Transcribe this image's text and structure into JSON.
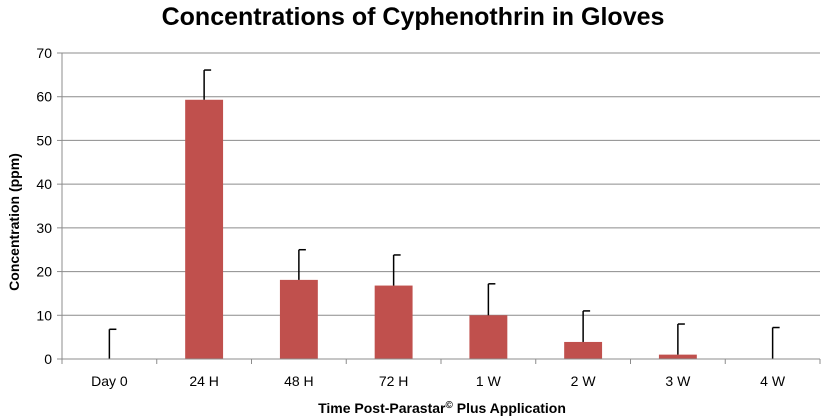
{
  "chart_data": {
    "type": "bar",
    "title": "Concentrations of Cyphenothrin in Gloves",
    "xlabel": "Time Post-Parastar",
    "xlabel_superscript": "©",
    "xlabel_suffix": " Plus Application",
    "ylabel": "Concentration (ppm)",
    "ylim": [
      0,
      70
    ],
    "yticks": [
      "0",
      "10",
      "20",
      "30",
      "40",
      "50",
      "60",
      "70"
    ],
    "grid": true,
    "bar_color": "#c0504d",
    "categories": [
      "Day 0",
      "24 H",
      "48 H",
      "72 H",
      "1 W",
      "2 W",
      "3 W",
      "4 W"
    ],
    "values": [
      0,
      59.3,
      18.1,
      16.8,
      10.0,
      3.9,
      1.0,
      0
    ],
    "error_upper": [
      6.8,
      6.8,
      6.9,
      7.0,
      7.2,
      7.1,
      7.0,
      7.2
    ]
  }
}
